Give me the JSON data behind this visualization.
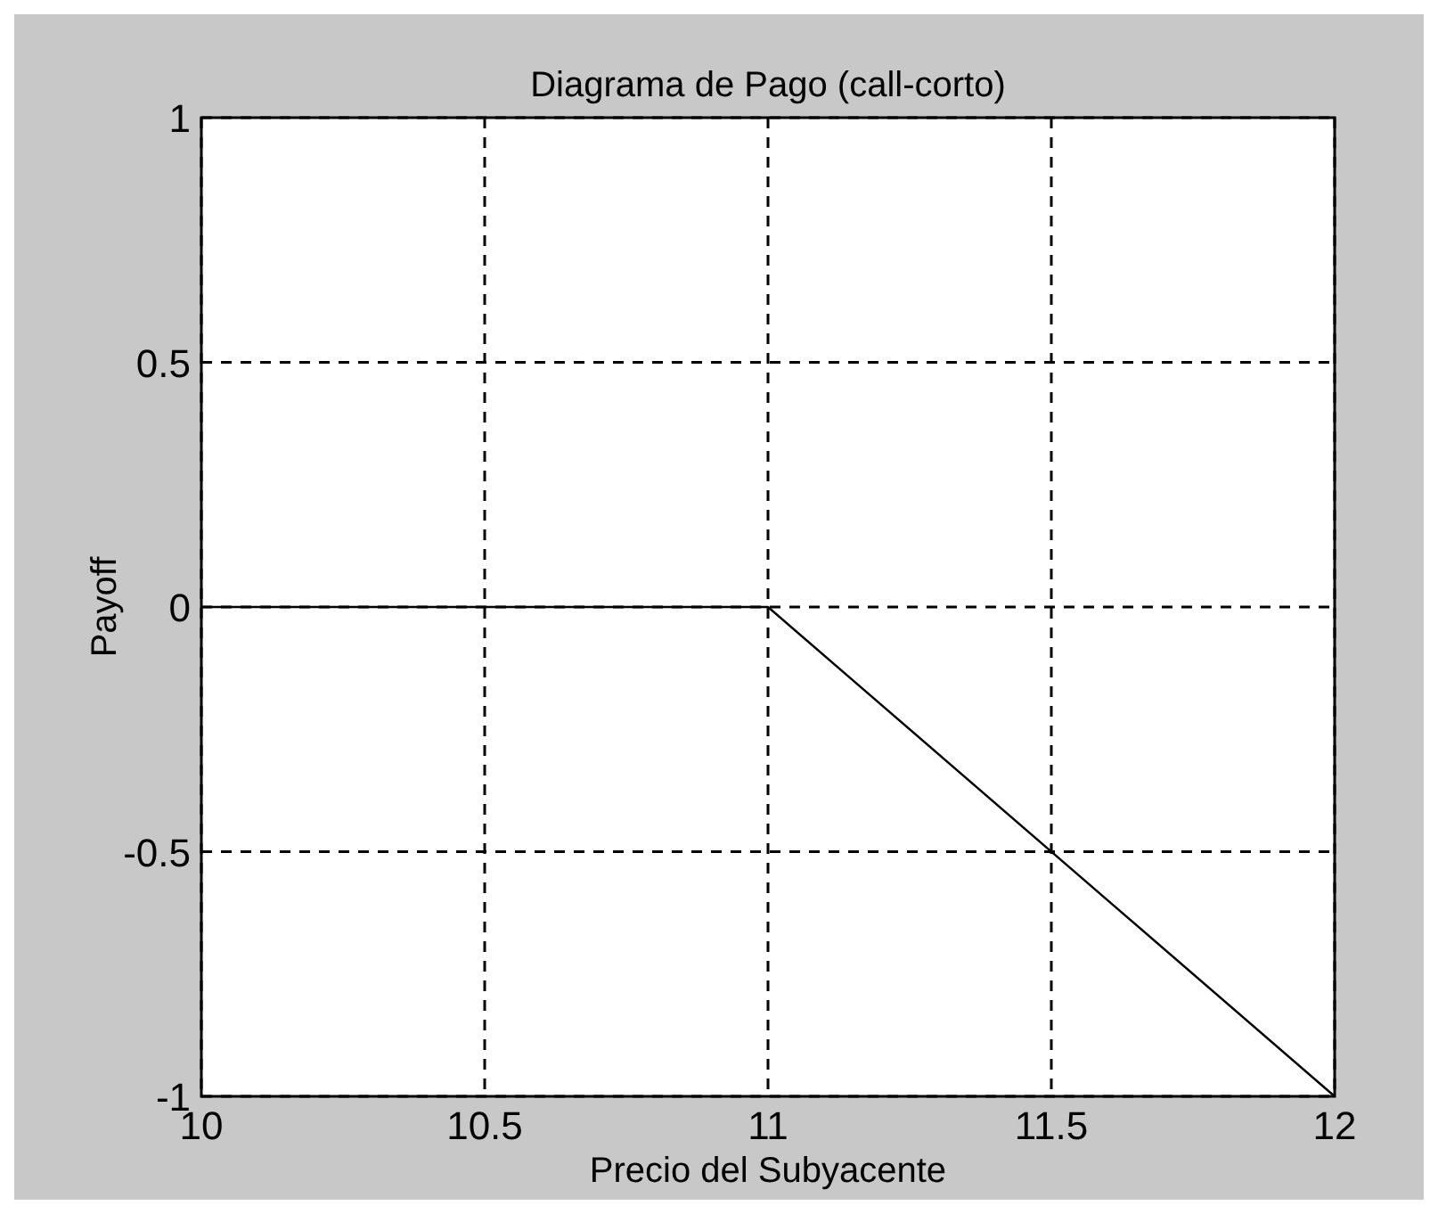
{
  "chart_data": {
    "type": "line",
    "title": "Diagrama de Pago (call-corto)",
    "xlabel": "Precio del Subyacente",
    "ylabel": "Payoff",
    "x": [
      10,
      11,
      12
    ],
    "series": [
      {
        "color": "#000000",
        "values": [
          0,
          0,
          -1
        ]
      }
    ],
    "xlim": [
      10,
      12
    ],
    "xticks": [
      10,
      10.5,
      11,
      11.5,
      12
    ],
    "ylim": [
      -1,
      1
    ],
    "yticks": [
      -1,
      -0.5,
      0,
      0.5,
      1
    ],
    "grid": true,
    "line_style": "solid",
    "marker": "none"
  }
}
